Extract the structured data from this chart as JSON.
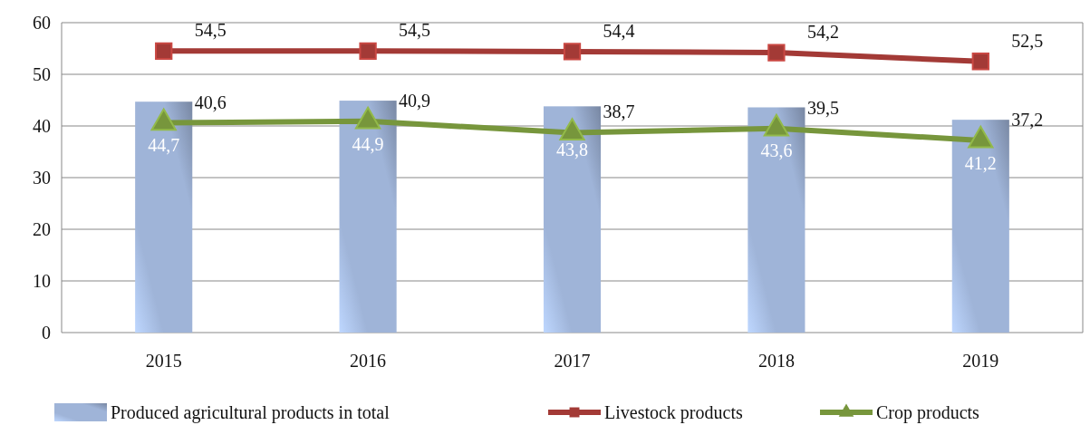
{
  "chart_data": {
    "type": "bar",
    "categories": [
      "2015",
      "2016",
      "2017",
      "2018",
      "2019"
    ],
    "ylim": [
      0,
      60
    ],
    "yticks": [
      0,
      10,
      20,
      30,
      40,
      50,
      60
    ],
    "grid": "y",
    "legend": "bottom",
    "series": [
      {
        "name": "Produced agricultural products in total",
        "color": "#9fb4d8",
        "values": [
          44.7,
          44.9,
          43.8,
          43.6,
          41.2
        ],
        "value_labels": [
          "44,7",
          "44,9",
          "43,8",
          "43,6",
          "41,2"
        ]
      },
      {
        "name": "Livestock products",
        "type": "line",
        "marker": "square",
        "color": "#a33a36",
        "values": [
          54.5,
          54.5,
          54.4,
          54.2,
          52.5
        ],
        "value_labels": [
          "54,5",
          "54,5",
          "54,4",
          "54,2",
          "52,5"
        ]
      },
      {
        "name": "Crop products",
        "type": "line",
        "marker": "triangle",
        "color": "#77963c",
        "values": [
          40.6,
          40.9,
          38.7,
          39.5,
          37.2
        ],
        "value_labels": [
          "40,6",
          "40,9",
          "38,7",
          "39,5",
          "37,2"
        ]
      }
    ]
  }
}
